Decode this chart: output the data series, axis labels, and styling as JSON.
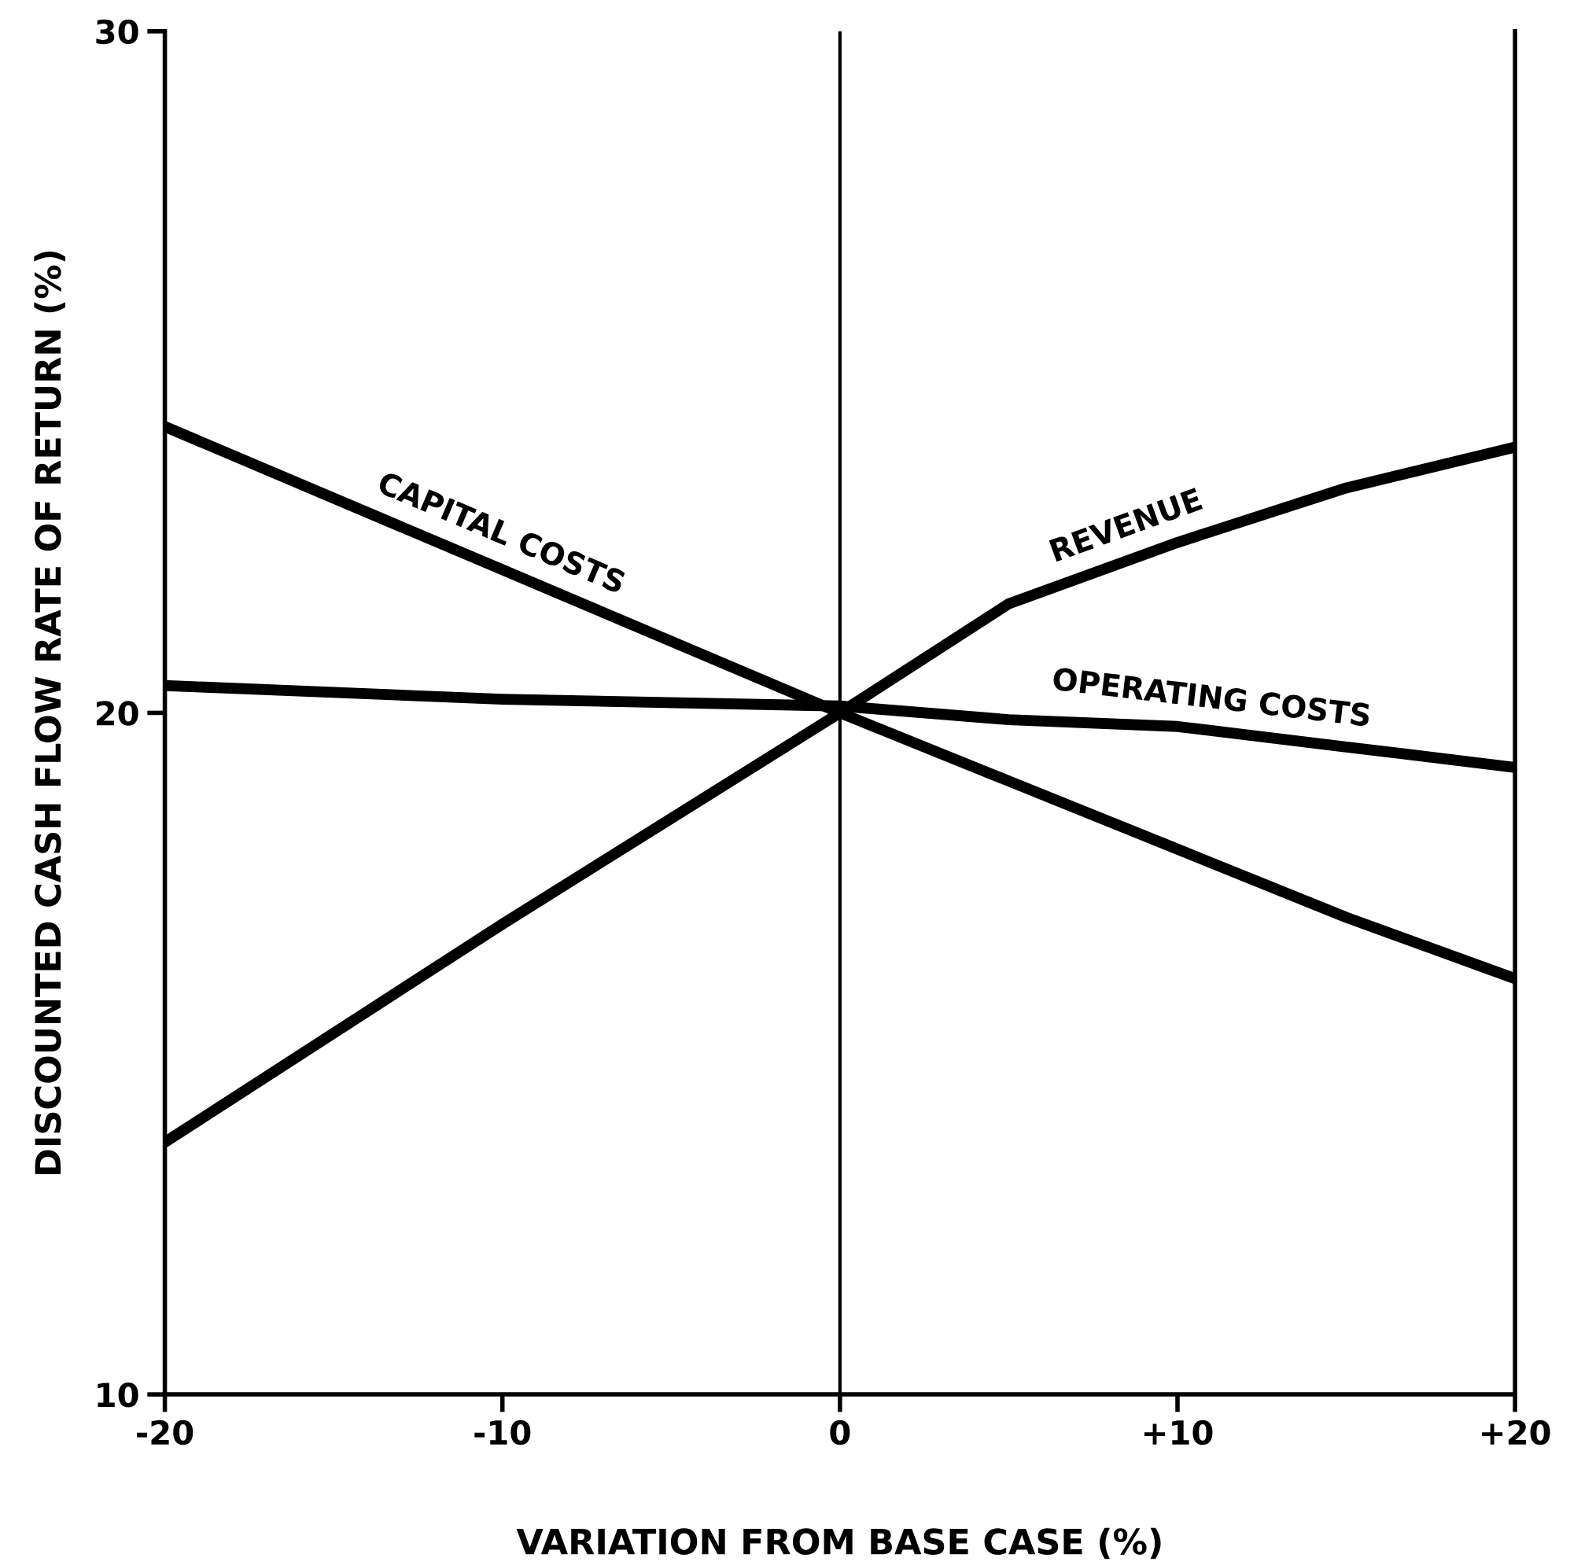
{
  "chart_data": {
    "type": "line",
    "xlabel": "VARIATION FROM BASE CASE (%)",
    "ylabel": "DISCOUNTED CASH FLOW RATE OF RETURN (%)",
    "x": [
      -20,
      -10,
      0,
      5,
      10,
      15,
      20
    ],
    "series": [
      {
        "color": "#000000",
        "values": [
          24.2,
          22.1,
          20.0,
          19.0,
          18.0,
          17.0,
          16.1
        ]
      },
      {
        "color": "#000000",
        "values": [
          13.7,
          16.9,
          20.0,
          21.6,
          22.5,
          23.3,
          23.9
        ]
      },
      {
        "color": "#000000",
        "values": [
          20.4,
          20.2,
          20.1,
          19.9,
          19.8,
          19.5,
          19.2
        ]
      }
    ],
    "annotations": [
      {
        "text": "CAPITAL COSTS",
        "x": -10.4,
        "y": 22.2
      },
      {
        "text": "REVENUE",
        "x": 8.8,
        "y": 22.3
      },
      {
        "text": "OPERATING COSTS",
        "x": 10.9,
        "y": 19.75
      }
    ],
    "ref_lines": [
      {
        "axis": "x",
        "value": 0
      }
    ],
    "xlim": [
      -20,
      20
    ],
    "ylim": [
      10,
      30
    ],
    "xticks": [
      -20,
      -10,
      0,
      {
        "value": 10,
        "label": "+10"
      },
      {
        "value": 20,
        "label": "+20"
      }
    ],
    "yticks": [
      10,
      20,
      30
    ],
    "grid": false,
    "legend": false,
    "marker": "none",
    "line_style": "solid"
  }
}
